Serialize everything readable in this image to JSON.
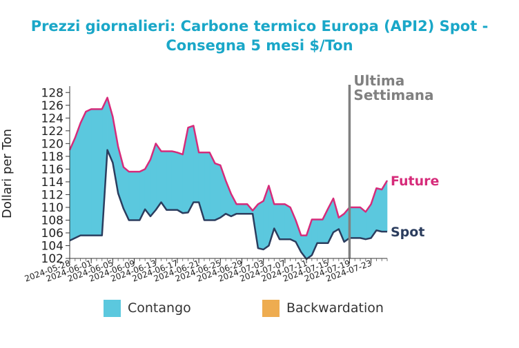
{
  "chart_data": {
    "type": "area",
    "title_lines": [
      "Prezzi giornalieri: Carbone termico Europa (API2) Spot -",
      "Consegna 5 mesi $/Ton"
    ],
    "ylabel": "Dollari per Ton",
    "ylim": [
      102,
      129
    ],
    "yticks": [
      102,
      104,
      106,
      108,
      110,
      112,
      114,
      116,
      118,
      120,
      122,
      124,
      126,
      128
    ],
    "x_start": "2024-05-28",
    "x_end": "2024-07-26",
    "xticks": [
      "2024-05-28",
      "2024-06-01",
      "2024-06-05",
      "2024-06-09",
      "2024-06-13",
      "2024-06-17",
      "2024-06-21",
      "2024-06-25",
      "2024-06-29",
      "2024-07-03",
      "2024-07-07",
      "2024-07-11",
      "2024-07-15",
      "2024-07-19",
      "2024-07-23"
    ],
    "marker": {
      "date": "2024-07-19",
      "label_lines": [
        "Ultima",
        "Settimana"
      ],
      "color": "#808080"
    },
    "series": [
      {
        "name": "Future",
        "color": "#d62b7a",
        "points": [
          [
            "2024-05-28",
            119.0
          ],
          [
            "2024-05-29",
            120.9
          ],
          [
            "2024-05-30",
            123.2
          ],
          [
            "2024-05-31",
            125.0
          ],
          [
            "2024-06-01",
            125.4
          ],
          [
            "2024-06-02",
            125.4
          ],
          [
            "2024-06-03",
            125.4
          ],
          [
            "2024-06-04",
            127.2
          ],
          [
            "2024-06-05",
            124.2
          ],
          [
            "2024-06-06",
            119.5
          ],
          [
            "2024-06-07",
            116.3
          ],
          [
            "2024-06-08",
            115.6
          ],
          [
            "2024-06-09",
            115.6
          ],
          [
            "2024-06-10",
            115.6
          ],
          [
            "2024-06-11",
            116.0
          ],
          [
            "2024-06-12",
            117.5
          ],
          [
            "2024-06-13",
            120.0
          ],
          [
            "2024-06-14",
            118.8
          ],
          [
            "2024-06-15",
            118.8
          ],
          [
            "2024-06-16",
            118.8
          ],
          [
            "2024-06-17",
            118.6
          ],
          [
            "2024-06-18",
            118.3
          ],
          [
            "2024-06-19",
            122.5
          ],
          [
            "2024-06-20",
            122.8
          ],
          [
            "2024-06-21",
            118.6
          ],
          [
            "2024-06-22",
            118.6
          ],
          [
            "2024-06-23",
            118.6
          ],
          [
            "2024-06-24",
            116.9
          ],
          [
            "2024-06-25",
            116.6
          ],
          [
            "2024-06-26",
            114.2
          ],
          [
            "2024-06-27",
            112.1
          ],
          [
            "2024-06-28",
            110.5
          ],
          [
            "2024-06-29",
            110.5
          ],
          [
            "2024-06-30",
            110.5
          ],
          [
            "2024-07-01",
            109.5
          ],
          [
            "2024-07-02",
            110.5
          ],
          [
            "2024-07-03",
            111.0
          ],
          [
            "2024-07-04",
            113.4
          ],
          [
            "2024-07-05",
            110.5
          ],
          [
            "2024-07-06",
            110.5
          ],
          [
            "2024-07-07",
            110.5
          ],
          [
            "2024-07-08",
            110.0
          ],
          [
            "2024-07-09",
            108.0
          ],
          [
            "2024-07-10",
            105.6
          ],
          [
            "2024-07-11",
            105.6
          ],
          [
            "2024-07-12",
            108.1
          ],
          [
            "2024-07-13",
            108.1
          ],
          [
            "2024-07-14",
            108.1
          ],
          [
            "2024-07-15",
            109.8
          ],
          [
            "2024-07-16",
            111.4
          ],
          [
            "2024-07-17",
            108.4
          ],
          [
            "2024-07-18",
            109.0
          ],
          [
            "2024-07-19",
            110.0
          ],
          [
            "2024-07-20",
            110.0
          ],
          [
            "2024-07-21",
            110.0
          ],
          [
            "2024-07-22",
            109.3
          ],
          [
            "2024-07-23",
            110.5
          ],
          [
            "2024-07-24",
            113.0
          ],
          [
            "2024-07-25",
            112.8
          ],
          [
            "2024-07-26",
            114.2
          ]
        ]
      },
      {
        "name": "Spot",
        "color": "#2b3d5e",
        "points": [
          [
            "2024-05-28",
            104.8
          ],
          [
            "2024-05-29",
            105.2
          ],
          [
            "2024-05-30",
            105.6
          ],
          [
            "2024-05-31",
            105.6
          ],
          [
            "2024-06-01",
            105.6
          ],
          [
            "2024-06-02",
            105.6
          ],
          [
            "2024-06-03",
            105.6
          ],
          [
            "2024-06-04",
            119.0
          ],
          [
            "2024-06-05",
            117.0
          ],
          [
            "2024-06-06",
            112.2
          ],
          [
            "2024-06-07",
            109.8
          ],
          [
            "2024-06-08",
            108.0
          ],
          [
            "2024-06-09",
            108.0
          ],
          [
            "2024-06-10",
            108.0
          ],
          [
            "2024-06-11",
            109.7
          ],
          [
            "2024-06-12",
            108.6
          ],
          [
            "2024-06-13",
            109.6
          ],
          [
            "2024-06-14",
            110.8
          ],
          [
            "2024-06-15",
            109.6
          ],
          [
            "2024-06-16",
            109.6
          ],
          [
            "2024-06-17",
            109.6
          ],
          [
            "2024-06-18",
            109.1
          ],
          [
            "2024-06-19",
            109.2
          ],
          [
            "2024-06-20",
            110.8
          ],
          [
            "2024-06-21",
            110.8
          ],
          [
            "2024-06-22",
            108.0
          ],
          [
            "2024-06-23",
            108.0
          ],
          [
            "2024-06-24",
            108.0
          ],
          [
            "2024-06-25",
            108.4
          ],
          [
            "2024-06-26",
            109.0
          ],
          [
            "2024-06-27",
            108.6
          ],
          [
            "2024-06-28",
            109.0
          ],
          [
            "2024-06-29",
            109.0
          ],
          [
            "2024-06-30",
            109.0
          ],
          [
            "2024-07-01",
            109.0
          ],
          [
            "2024-07-02",
            103.6
          ],
          [
            "2024-07-03",
            103.4
          ],
          [
            "2024-07-04",
            104.0
          ],
          [
            "2024-07-05",
            106.7
          ],
          [
            "2024-07-06",
            105.0
          ],
          [
            "2024-07-07",
            105.0
          ],
          [
            "2024-07-08",
            105.0
          ],
          [
            "2024-07-09",
            104.6
          ],
          [
            "2024-07-10",
            103.0
          ],
          [
            "2024-07-11",
            101.9
          ],
          [
            "2024-07-12",
            102.5
          ],
          [
            "2024-07-13",
            104.4
          ],
          [
            "2024-07-14",
            104.4
          ],
          [
            "2024-07-15",
            104.4
          ],
          [
            "2024-07-16",
            106.1
          ],
          [
            "2024-07-17",
            106.6
          ],
          [
            "2024-07-18",
            104.6
          ],
          [
            "2024-07-19",
            105.2
          ],
          [
            "2024-07-20",
            105.2
          ],
          [
            "2024-07-21",
            105.2
          ],
          [
            "2024-07-22",
            105.0
          ],
          [
            "2024-07-23",
            105.2
          ],
          [
            "2024-07-24",
            106.4
          ],
          [
            "2024-07-25",
            106.2
          ],
          [
            "2024-07-26",
            106.2
          ]
        ]
      }
    ],
    "fills": [
      {
        "name": "Contango",
        "color": "#5bc8de"
      },
      {
        "name": "Backwardation",
        "color": "#eeac50"
      }
    ],
    "legend_placement": "bottom",
    "grid": false
  }
}
